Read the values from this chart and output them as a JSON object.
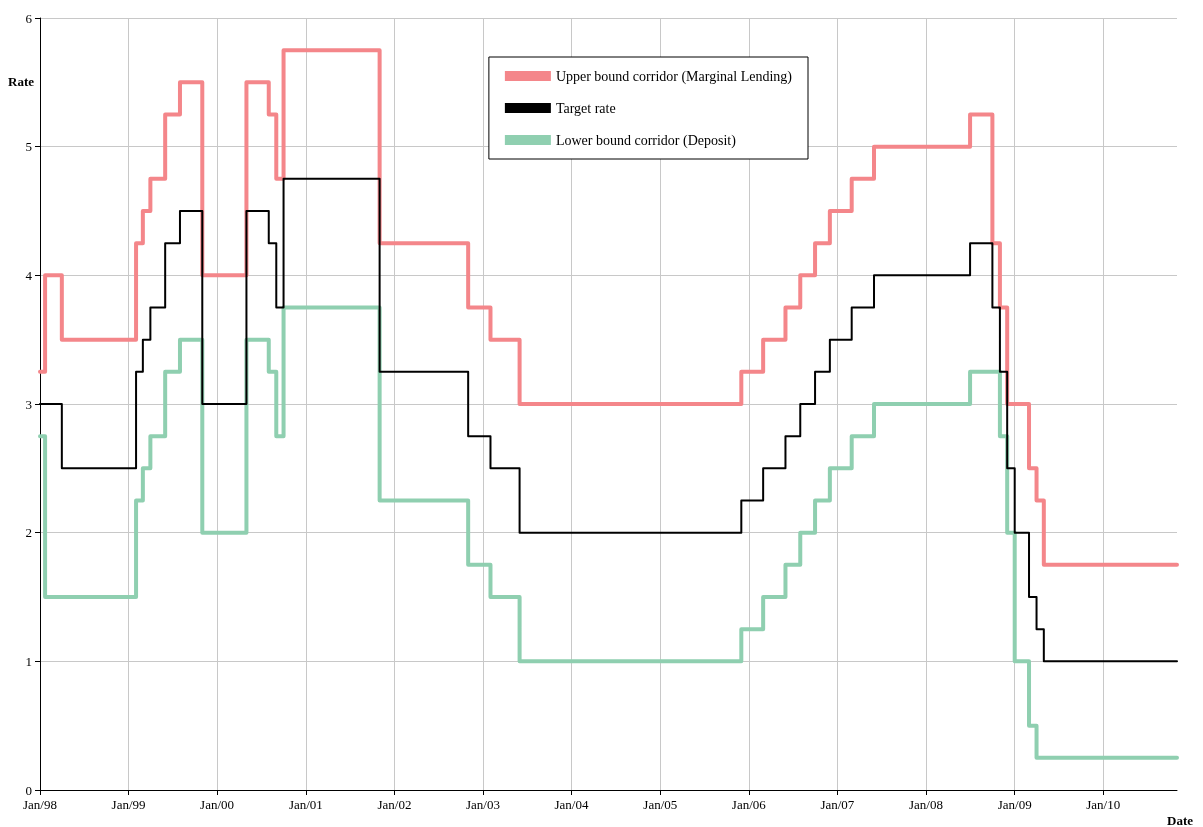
{
  "chart_data": {
    "type": "step",
    "xlabel": "Date",
    "ylabel": "Rate",
    "xlim": [
      "1998-01",
      "2010-11"
    ],
    "xticks": [
      {
        "value": "1998-01",
        "label": "Jan/98"
      },
      {
        "value": "1999-01",
        "label": "Jan/99"
      },
      {
        "value": "2000-01",
        "label": "Jan/00"
      },
      {
        "value": "2001-01",
        "label": "Jan/01"
      },
      {
        "value": "2002-01",
        "label": "Jan/02"
      },
      {
        "value": "2003-01",
        "label": "Jan/03"
      },
      {
        "value": "2004-01",
        "label": "Jan/04"
      },
      {
        "value": "2005-01",
        "label": "Jan/05"
      },
      {
        "value": "2006-01",
        "label": "Jan/06"
      },
      {
        "value": "2007-01",
        "label": "Jan/07"
      },
      {
        "value": "2008-01",
        "label": "Jan/08"
      },
      {
        "value": "2009-01",
        "label": "Jan/09"
      },
      {
        "value": "2010-01",
        "label": "Jan/10"
      }
    ],
    "ylim": [
      0,
      6
    ],
    "yticks": [
      0,
      1,
      2,
      3,
      4,
      5,
      6
    ],
    "grid": true,
    "legend": "top right",
    "marker": "none",
    "line_style": "solid",
    "series": [
      {
        "name": "Upper bound corridor (Marginal Lending)",
        "color": "#f4868a",
        "x": [
          "1998-01-01",
          "1998-01-22",
          "1998-04",
          "1999-02",
          "1999-03",
          "1999-04",
          "1999-06",
          "1999-08",
          "1999-11",
          "2000-05",
          "2000-08",
          "2000-09",
          "2000-10",
          "2001-11",
          "2002-11",
          "2003-02",
          "2003-06",
          "2005-12",
          "2006-03",
          "2006-06",
          "2006-08",
          "2006-10",
          "2006-12",
          "2007-03",
          "2007-06",
          "2008-07",
          "2008-10",
          "2008-11",
          "2008-12",
          "2009-03",
          "2009-04",
          "2009-05",
          "2010-11"
        ],
        "values": [
          3.25,
          4.0,
          3.5,
          4.25,
          4.5,
          4.75,
          5.25,
          5.5,
          4.0,
          5.5,
          5.25,
          4.75,
          5.75,
          4.25,
          3.75,
          3.5,
          3.0,
          3.25,
          3.5,
          3.75,
          4.0,
          4.25,
          4.5,
          4.75,
          5.0,
          5.25,
          4.25,
          3.75,
          3.0,
          2.5,
          2.25,
          1.75,
          1.75
        ]
      },
      {
        "name": "Target rate",
        "color": "#000000",
        "x": [
          "1998-01-01",
          "1998-04",
          "1999-02",
          "1999-03",
          "1999-04",
          "1999-06",
          "1999-08",
          "1999-11",
          "2000-05",
          "2000-08",
          "2000-09",
          "2000-10",
          "2001-11",
          "2002-11",
          "2003-02",
          "2003-06",
          "2005-12",
          "2006-03",
          "2006-06",
          "2006-08",
          "2006-10",
          "2006-12",
          "2007-03",
          "2007-06",
          "2008-07",
          "2008-10",
          "2008-11",
          "2008-12",
          "2009-01",
          "2009-03",
          "2009-04",
          "2009-05",
          "2010-11"
        ],
        "values": [
          3.0,
          2.5,
          3.25,
          3.5,
          3.75,
          4.25,
          4.5,
          3.0,
          4.5,
          4.25,
          3.75,
          4.75,
          3.25,
          2.75,
          2.5,
          2.0,
          2.25,
          2.5,
          2.75,
          3.0,
          3.25,
          3.5,
          3.75,
          4.0,
          4.25,
          3.75,
          3.25,
          2.5,
          2.0,
          1.5,
          1.25,
          1.0,
          1.0
        ]
      },
      {
        "name": "Lower bound corridor (Deposit)",
        "color": "#8fcfb0",
        "x": [
          "1998-01-01",
          "1998-01-22",
          "1999-02",
          "1999-03",
          "1999-04",
          "1999-06",
          "1999-08",
          "1999-11",
          "2000-05",
          "2000-08",
          "2000-09",
          "2000-10",
          "2001-11",
          "2002-11",
          "2003-02",
          "2003-06",
          "2005-12",
          "2006-03",
          "2006-06",
          "2006-08",
          "2006-10",
          "2006-12",
          "2007-03",
          "2007-06",
          "2008-07",
          "2008-11",
          "2008-12",
          "2009-01",
          "2009-03",
          "2009-04",
          "2010-11"
        ],
        "values": [
          2.75,
          1.5,
          2.25,
          2.5,
          2.75,
          3.25,
          3.5,
          2.0,
          3.5,
          3.25,
          2.75,
          3.75,
          2.25,
          1.75,
          1.5,
          1.0,
          1.25,
          1.5,
          1.75,
          2.0,
          2.25,
          2.5,
          2.75,
          3.0,
          3.25,
          2.75,
          2.0,
          1.0,
          0.5,
          0.25,
          0.25
        ]
      }
    ]
  }
}
